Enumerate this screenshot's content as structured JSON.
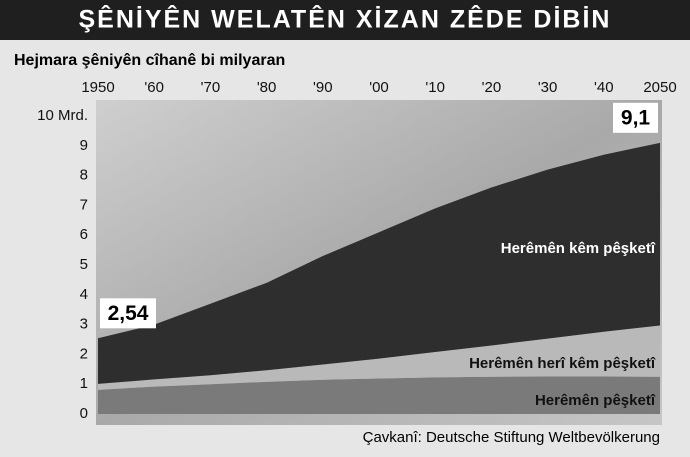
{
  "chart_data": {
    "type": "stacked_area",
    "title": "ŞÊNİYÊN WELATÊN XİZAN ZÊDE DİBİN",
    "subtitle": "Hejmara şêniyên cîhanê bi milyaran",
    "source": "Çavkanî: Deutsche Stiftung Weltbevölkerung",
    "x": [
      1950,
      1960,
      1970,
      1980,
      1990,
      2000,
      2010,
      2020,
      2030,
      2040,
      2050
    ],
    "series": [
      {
        "name": "Herêmên pêşketî",
        "color": "#7a7a7a",
        "values": [
          0.81,
          0.92,
          1.0,
          1.08,
          1.15,
          1.19,
          1.23,
          1.25,
          1.26,
          1.26,
          1.25
        ]
      },
      {
        "name": "Herêmên herî kêm pêşketî",
        "color": "#b9b9b9",
        "values": [
          0.2,
          0.24,
          0.3,
          0.39,
          0.51,
          0.67,
          0.85,
          1.05,
          1.27,
          1.5,
          1.72
        ]
      },
      {
        "name": "Herêmên kêm pêşketî",
        "color": "#2e2e2e",
        "values": [
          1.53,
          1.84,
          2.4,
          2.93,
          3.64,
          4.24,
          4.82,
          5.3,
          5.67,
          5.94,
          6.13
        ]
      }
    ],
    "annotations": [
      {
        "text": "2,54",
        "x": 1950
      },
      {
        "text": "9,1",
        "x": 2050
      }
    ],
    "xlim": [
      1950,
      2050
    ],
    "xticks": [
      1950,
      {
        "value": 1960,
        "label": "'60"
      },
      {
        "value": 1970,
        "label": "'70"
      },
      {
        "value": 1980,
        "label": "'80"
      },
      {
        "value": 1990,
        "label": "'90"
      },
      {
        "value": 2000,
        "label": "'00"
      },
      {
        "value": 2010,
        "label": "'10"
      },
      {
        "value": 2020,
        "label": "'20"
      },
      {
        "value": 2030,
        "label": "'30"
      },
      {
        "value": 2040,
        "label": "'40"
      },
      2050
    ],
    "ylim": [
      0,
      10
    ],
    "yticks": [
      0,
      1,
      2,
      3,
      4,
      5,
      6,
      7,
      8,
      9,
      {
        "value": 10,
        "label": "10 Mrd."
      }
    ]
  }
}
